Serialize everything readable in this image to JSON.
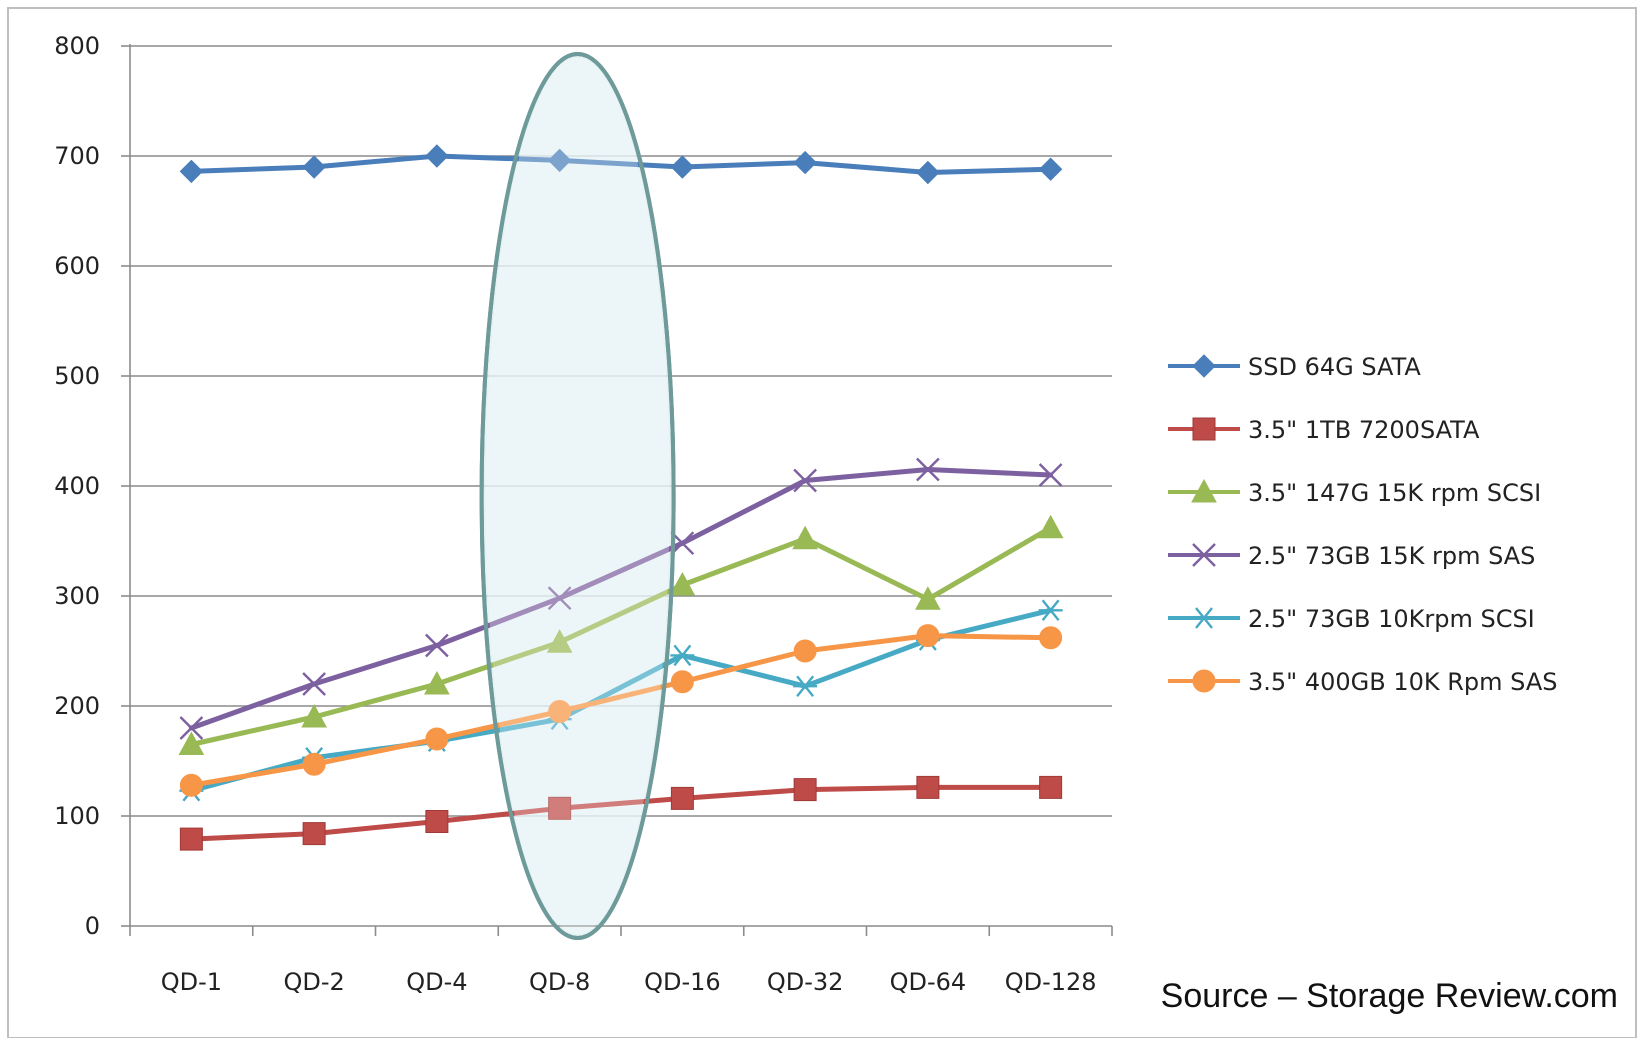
{
  "chart_data": {
    "type": "line",
    "categories": [
      "QD-1",
      "QD-2",
      "QD-4",
      "QD-8",
      "QD-16",
      "QD-32",
      "QD-64",
      "QD-128"
    ],
    "ylim": [
      0,
      800
    ],
    "yticks": [
      0,
      100,
      200,
      300,
      400,
      500,
      600,
      700,
      800
    ],
    "grid": true,
    "legend": "right",
    "highlight": {
      "category": "QD-8",
      "shape": "ellipse",
      "fill": "#dceff2",
      "stroke": "#6f9a9a"
    },
    "series": [
      {
        "name": "SSD 64G SATA",
        "values": [
          686,
          690,
          700,
          696,
          690,
          694,
          685,
          688
        ],
        "color": "#4a7ebb",
        "marker": "diamond"
      },
      {
        "name": "3.5\" 1TB 7200SATA",
        "values": [
          79,
          84,
          95,
          107,
          116,
          124,
          126,
          126
        ],
        "color": "#be4b48",
        "marker": "square"
      },
      {
        "name": "3.5\" 147G 15K rpm SCSI",
        "values": [
          165,
          190,
          220,
          258,
          310,
          352,
          297,
          362
        ],
        "color": "#98b954",
        "marker": "triangle"
      },
      {
        "name": "2.5\" 73GB 15K rpm SAS",
        "values": [
          180,
          220,
          255,
          298,
          348,
          405,
          415,
          410
        ],
        "color": "#7d60a0",
        "marker": "x"
      },
      {
        "name": "2.5\" 73GB 10Krpm SCSI",
        "values": [
          123,
          153,
          168,
          188,
          246,
          218,
          260,
          287
        ],
        "color": "#46aac5",
        "marker": "star"
      },
      {
        "name": "3.5\" 400GB 10K Rpm SAS",
        "values": [
          128,
          147,
          170,
          195,
          222,
          250,
          264,
          262
        ],
        "color": "#f79646",
        "marker": "circle"
      }
    ]
  },
  "source": {
    "text": "Source – Storage Review.com"
  }
}
